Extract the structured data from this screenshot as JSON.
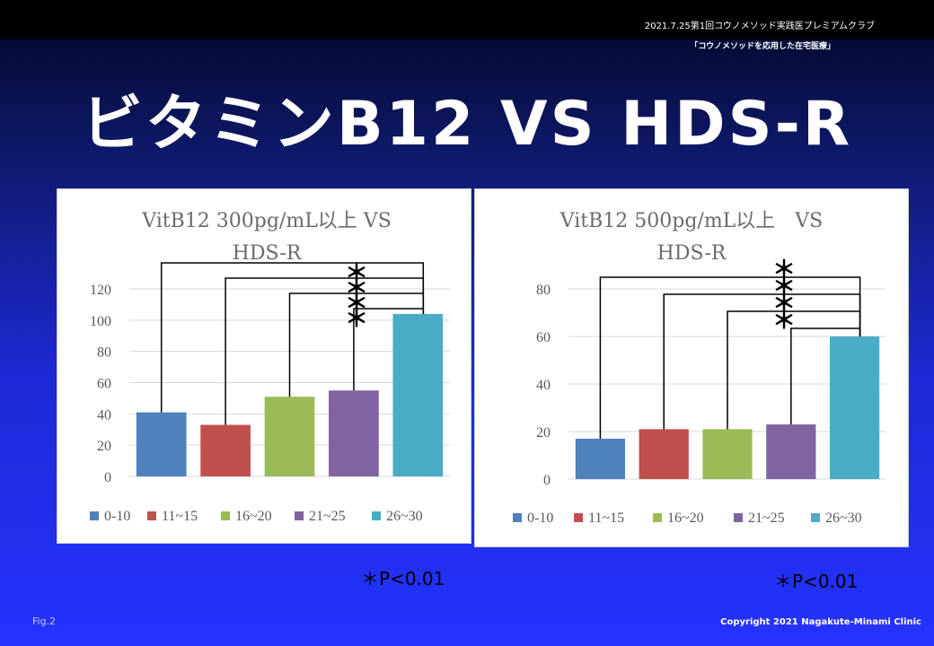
{
  "header": {
    "event": "2021.7.25第1回コウノメソッド実践医プレミアムクラブ",
    "subtitle": "「コウノメソッドを応用した在宅医療」"
  },
  "slide_title": "ビタミンB12 VS HDS-R",
  "chart_data": [
    {
      "type": "bar",
      "title_lines": [
        "VitB12 300pg/mL以上 VS",
        "HDS-R"
      ],
      "categories": [
        "0-10",
        "11~15",
        "16~20",
        "21~25",
        "26~30"
      ],
      "values": [
        41,
        33,
        51,
        55,
        104
      ],
      "colors": [
        "#4f81bd",
        "#c0504d",
        "#9bbb59",
        "#8064a2",
        "#4bacc6"
      ],
      "ylim": [
        0,
        120
      ],
      "yticks": [
        0,
        20,
        40,
        60,
        80,
        100,
        120
      ],
      "grid": true,
      "legend": "bottom",
      "significance": {
        "marker": "＊",
        "pairs": [
          [
            0,
            4
          ],
          [
            1,
            4
          ],
          [
            2,
            4
          ],
          [
            3,
            4
          ]
        ]
      },
      "note": "＊P<0.01"
    },
    {
      "type": "bar",
      "title_lines": [
        "VitB12 500pg/mL以上　VS",
        "HDS-R"
      ],
      "categories": [
        "0-10",
        "11~15",
        "16~20",
        "21~25",
        "26~30"
      ],
      "values": [
        17,
        21,
        21,
        23,
        60
      ],
      "colors": [
        "#4f81bd",
        "#c0504d",
        "#9bbb59",
        "#8064a2",
        "#4bacc6"
      ],
      "ylim": [
        0,
        80
      ],
      "yticks": [
        0,
        20,
        40,
        60,
        80
      ],
      "grid": true,
      "legend": "bottom",
      "significance": {
        "marker": "＊",
        "pairs": [
          [
            0,
            4
          ],
          [
            1,
            4
          ],
          [
            2,
            4
          ],
          [
            3,
            4
          ]
        ]
      },
      "note": "＊P<0.01"
    }
  ],
  "footer": {
    "fig": "Fig.2",
    "copyright": "Copyright 2021 Nagakute-Minami Clinic"
  }
}
